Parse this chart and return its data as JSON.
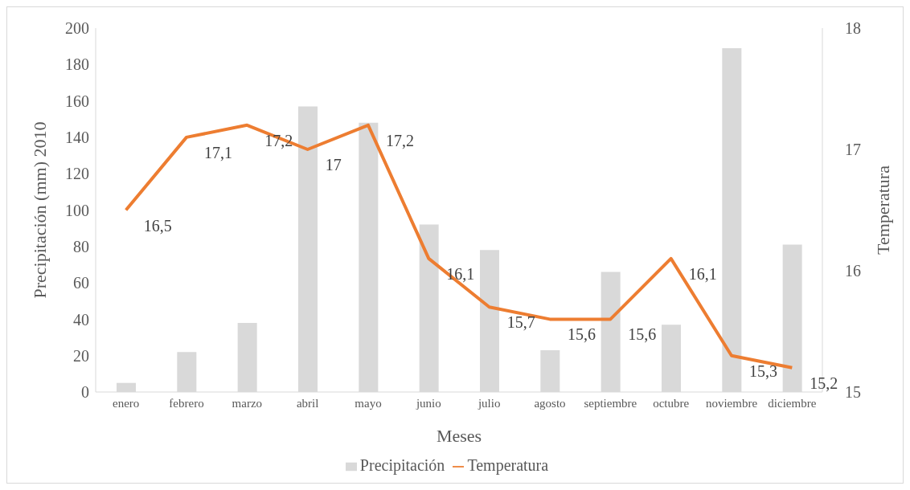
{
  "chart_data": {
    "type": "bar",
    "xlabel": "Meses",
    "ylabel": "Precipitación (mm) 2010",
    "y2label": "Temperatura",
    "categories": [
      "enero",
      "febrero",
      "marzo",
      "abril",
      "mayo",
      "junio",
      "julio",
      "agosto",
      "septiembre",
      "octubre",
      "noviembre",
      "diciembre"
    ],
    "series": [
      {
        "name": "Precipitación",
        "color": "#d9d9d9",
        "values": [
          5,
          22,
          38,
          157,
          148,
          92,
          78,
          23,
          66,
          37,
          189,
          81
        ]
      },
      {
        "name": "Temperatura",
        "type": "line",
        "axis": "y2",
        "color": "#ed7d31",
        "values": [
          16.5,
          17.1,
          17.2,
          17,
          17.2,
          16.1,
          15.7,
          15.6,
          15.6,
          16.1,
          15.3,
          15.2
        ],
        "value_labels": [
          "16,5",
          "17,1",
          "17,2",
          "17",
          "17,2",
          "16,1",
          "15,7",
          "15,6",
          "15,6",
          "16,1",
          "15,3",
          "15,2"
        ]
      }
    ],
    "ylim": [
      0,
      200
    ],
    "yticks": [
      0,
      20,
      40,
      60,
      80,
      100,
      120,
      140,
      160,
      180,
      200
    ],
    "y2lim": [
      15,
      18
    ],
    "y2ticks": [
      15,
      16,
      17,
      18
    ],
    "grid": false,
    "legend": "bottom"
  }
}
